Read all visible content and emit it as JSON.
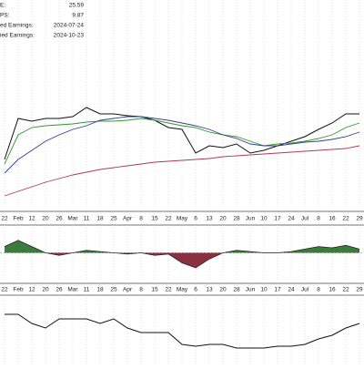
{
  "chart_data": {
    "type": "line",
    "header": {
      "labels": [
        "E:",
        "PS:",
        "ed Earnings:",
        "ied Earnings:"
      ],
      "values": [
        "25.59",
        "9.87",
        "2024-07-24",
        "2024-10-23"
      ]
    },
    "categories": [
      "22",
      "Feb",
      "12",
      "20",
      "26",
      "Mar",
      "11",
      "18",
      "25",
      "Apr",
      "8",
      "15",
      "22",
      "May",
      "6",
      "13",
      "20",
      "28",
      "Jun",
      "10",
      "17",
      "24",
      "Jul",
      "8",
      "16",
      "22",
      "29"
    ],
    "ylim": [
      0,
      232
    ],
    "series": [
      {
        "color": "#111111",
        "values": [
          57,
          102,
          99,
          102,
          102,
          104,
          114,
          107,
          107,
          105,
          104,
          100,
          92,
          90,
          64,
          72,
          70,
          74,
          64,
          67,
          72,
          77,
          82,
          90,
          97,
          107,
          107
        ]
      },
      {
        "color": "#2e9a2e",
        "values": [
          52,
          84,
          92,
          94,
          95,
          96,
          98,
          99,
          99,
          100,
          102,
          100,
          97,
          94,
          92,
          87,
          84,
          82,
          77,
          72,
          74,
          75,
          77,
          80,
          84,
          92,
          97
        ]
      },
      {
        "color": "#3a3aa0",
        "values": [
          42,
          57,
          67,
          77,
          84,
          90,
          94,
          100,
          102,
          104,
          104,
          102,
          100,
          97,
          94,
          90,
          84,
          80,
          74,
          72,
          72,
          74,
          76,
          77,
          79,
          82,
          87
        ]
      },
      {
        "color": "#b0385a",
        "values": [
          17,
          22,
          27,
          32,
          36,
          40,
          43,
          46,
          48,
          50,
          52,
          54,
          55,
          56,
          57,
          58,
          60,
          61,
          62,
          63,
          64,
          65,
          66,
          67,
          68,
          69,
          72
        ]
      }
    ],
    "indicator": {
      "ylim": [
        -20,
        20
      ],
      "pos_color": "#3d7a3d",
      "neg_color": "#8a3040",
      "values": [
        5,
        10,
        5,
        0,
        -2,
        0,
        2,
        1,
        0,
        -1,
        0,
        -2,
        -1,
        -8,
        -12,
        -5,
        0,
        2,
        1,
        0,
        0,
        1,
        3,
        5,
        4,
        6,
        3
      ]
    },
    "lower": {
      "ylim": [
        0,
        75
      ],
      "color": "#111111",
      "values": [
        55,
        55,
        45,
        40,
        50,
        50,
        50,
        45,
        50,
        40,
        35,
        35,
        35,
        22,
        20,
        22,
        22,
        18,
        18,
        18,
        20,
        20,
        22,
        28,
        32,
        40,
        45
      ]
    }
  }
}
